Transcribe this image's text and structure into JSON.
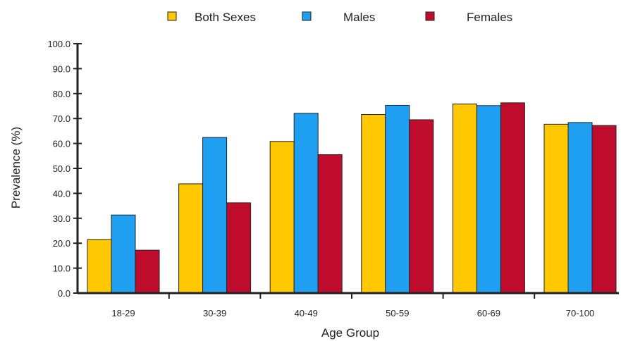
{
  "chart_data": {
    "type": "bar",
    "xlabel": "Age Group",
    "ylabel": "Prevalence (%)",
    "ylim": [
      0,
      100
    ],
    "yticks": [
      "0.0",
      "10.0",
      "20.0",
      "30.0",
      "40.0",
      "50.0",
      "60.0",
      "70.0",
      "80.0",
      "90.0",
      "100.0"
    ],
    "categories": [
      "18-29",
      "30-39",
      "40-49",
      "50-59",
      "60-69",
      "70-100"
    ],
    "series": [
      {
        "name": "Both Sexes",
        "color": "#FFC800",
        "values": [
          21.5,
          43.8,
          60.8,
          71.6,
          75.8,
          67.7
        ]
      },
      {
        "name": "Males",
        "color": "#1E9FF2",
        "values": [
          31.3,
          62.4,
          72.1,
          75.3,
          75.2,
          68.4
        ]
      },
      {
        "name": "Females",
        "color": "#C00C2C",
        "values": [
          17.2,
          36.2,
          55.5,
          69.5,
          76.3,
          67.2
        ]
      }
    ],
    "legend_position": "top",
    "grid": false
  }
}
